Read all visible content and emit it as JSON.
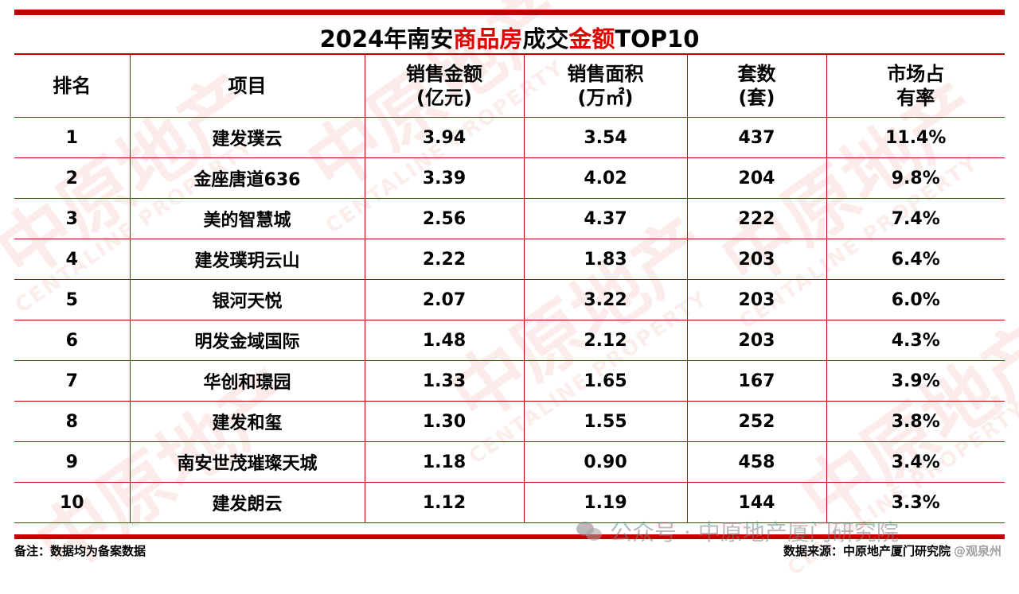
{
  "title": {
    "part1": "2024年南安",
    "part2": "商品房",
    "part3": "成交",
    "part4": "金额",
    "part5": "TOP10"
  },
  "colors": {
    "accent": "#c00000",
    "highlight": "#e00000"
  },
  "table": {
    "headers": {
      "rank": "排名",
      "project": "项目",
      "amount_l1": "销售金额",
      "amount_l2": "(亿元)",
      "area_l1": "销售面积",
      "area_l2": "(万㎡)",
      "units_l1": "套数",
      "units_l2": "(套)",
      "share_l1": "市场占",
      "share_l2": "有率"
    },
    "rows": [
      {
        "rank": "1",
        "project": "建发璞云",
        "amount": "3.94",
        "area": "3.54",
        "units": "437",
        "share": "11.4%"
      },
      {
        "rank": "2",
        "project": "金座唐道636",
        "amount": "3.39",
        "area": "4.02",
        "units": "204",
        "share": "9.8%"
      },
      {
        "rank": "3",
        "project": "美的智慧城",
        "amount": "2.56",
        "area": "4.37",
        "units": "222",
        "share": "7.4%"
      },
      {
        "rank": "4",
        "project": "建发璞玥云山",
        "amount": "2.22",
        "area": "1.83",
        "units": "203",
        "share": "6.4%"
      },
      {
        "rank": "5",
        "project": "银河天悦",
        "amount": "2.07",
        "area": "3.22",
        "units": "203",
        "share": "6.0%"
      },
      {
        "rank": "6",
        "project": "明发金域国际",
        "amount": "1.48",
        "area": "2.12",
        "units": "203",
        "share": "4.3%"
      },
      {
        "rank": "7",
        "project": "华创和璟园",
        "amount": "1.33",
        "area": "1.65",
        "units": "167",
        "share": "3.9%"
      },
      {
        "rank": "8",
        "project": "建发和玺",
        "amount": "1.30",
        "area": "1.55",
        "units": "252",
        "share": "3.8%"
      },
      {
        "rank": "9",
        "project": "南安世茂璀璨天城",
        "amount": "1.18",
        "area": "0.90",
        "units": "458",
        "share": "3.4%"
      },
      {
        "rank": "10",
        "project": "建发朗云",
        "amount": "1.12",
        "area": "1.19",
        "units": "144",
        "share": "3.3%"
      }
    ]
  },
  "footer": {
    "note": "备注：数据均为备案数据",
    "source": "数据来源：中原地产厦门研究院"
  },
  "watermarks": {
    "brand": "中原地产",
    "brand_en": "CENTALINE PROPERTY",
    "wechat": "公众号 · 中原地产厦门研究院",
    "handle": "@观泉州"
  }
}
